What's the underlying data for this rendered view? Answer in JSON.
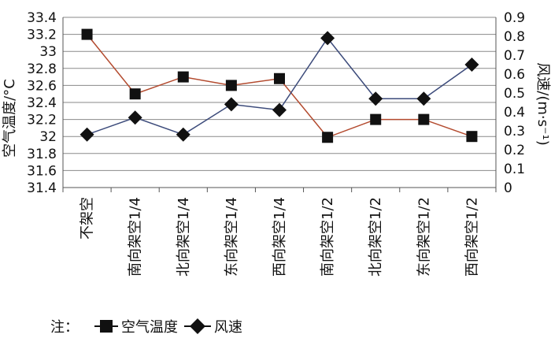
{
  "chart_data": {
    "type": "line",
    "categories": [
      "不架空",
      "南向架空1/4",
      "北向架空1/4",
      "东向架空1/4",
      "西向架空1/4",
      "南向架空1/2",
      "北向架空1/2",
      "东向架空1/2",
      "西向架空1/2"
    ],
    "left_axis": {
      "label": "空气温度/°C",
      "range": [
        31.4,
        33.4
      ],
      "ticks": [
        "33.4",
        "33.2",
        "33",
        "32.8",
        "32.6",
        "32.4",
        "32.2",
        "32",
        "31.8",
        "31.6",
        "31.4"
      ]
    },
    "right_axis": {
      "label": "风速/(m·s⁻¹)",
      "range": [
        0,
        0.9
      ],
      "ticks": [
        "0.9",
        "0.8",
        "0.7",
        "0.6",
        "0.5",
        "0.4",
        "0.3",
        "0.2",
        "0.1",
        "0"
      ]
    },
    "series": [
      {
        "name": "空气温度",
        "axis": "left",
        "marker": "square",
        "color": "#b34a2e",
        "values": [
          33.2,
          32.5,
          32.7,
          32.6,
          32.68,
          31.99,
          32.2,
          32.2,
          32.0
        ]
      },
      {
        "name": "风速",
        "axis": "right",
        "marker": "diamond",
        "color": "#3b4a7a",
        "values": [
          0.28,
          0.37,
          0.28,
          0.44,
          0.41,
          0.79,
          0.47,
          0.47,
          0.65
        ]
      }
    ],
    "grid": true,
    "legend": {
      "prefix": "注：",
      "placement": "bottom-left"
    }
  }
}
